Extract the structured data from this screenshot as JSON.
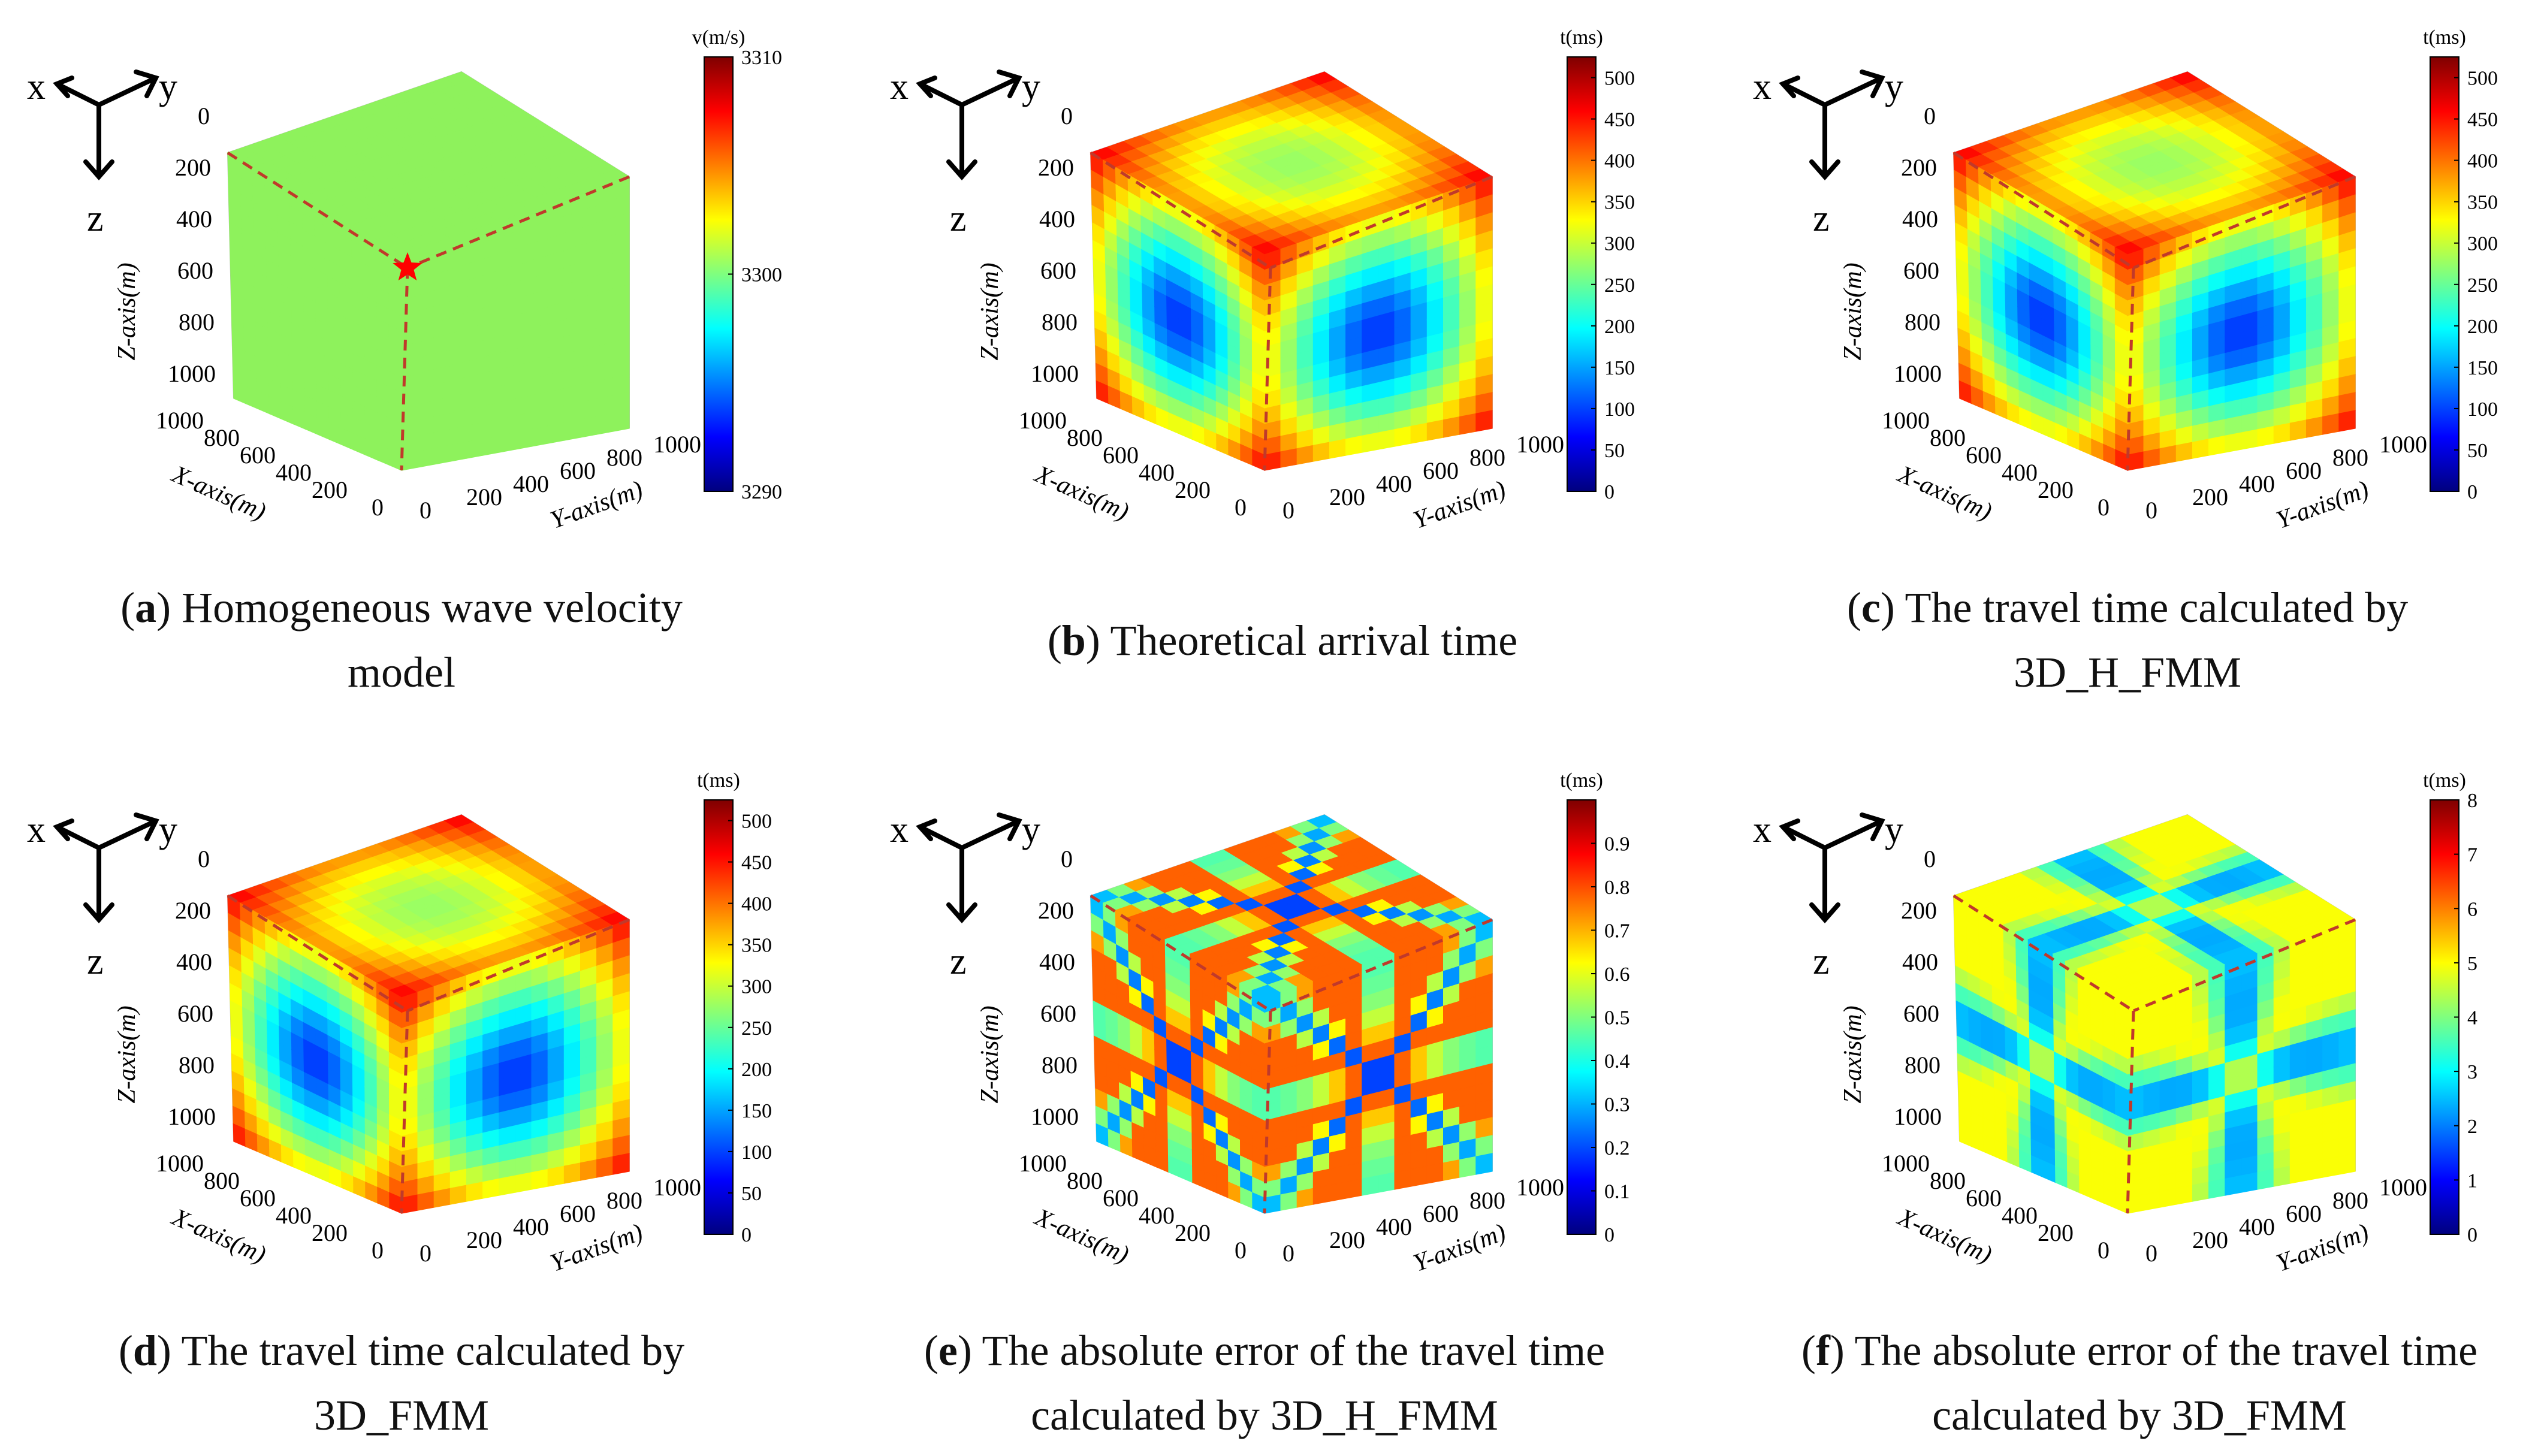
{
  "colormap": [
    "#00007f",
    "#0000ff",
    "#007fff",
    "#00ffff",
    "#7fff7f",
    "#ffff00",
    "#ff7f00",
    "#ff0000",
    "#7f0000"
  ],
  "colors": {
    "source_star": "#ff0000",
    "dashed_lines": "#c0392b",
    "uniform_face": "#8ef25c"
  },
  "orientation": {
    "x_label": "x",
    "y_label": "y",
    "z_label": "z"
  },
  "axes": {
    "z_label": "Z-axis(m)",
    "x_label": "X-axis(m)",
    "y_label": "Y-axis(m)",
    "z_ticks": [
      "0",
      "200",
      "400",
      "600",
      "800",
      "1000"
    ],
    "x_ticks": [
      "1000",
      "800",
      "600",
      "400",
      "200",
      "0"
    ],
    "y_ticks": [
      "0",
      "200",
      "400",
      "600",
      "800",
      "1000"
    ]
  },
  "chart_data": [
    {
      "type": "heatmap",
      "panel": "a",
      "field": "uniform",
      "xlabel": "X-axis(m)",
      "ylabel": "Y-axis(m)",
      "zlabel": "Z-axis(m)",
      "xlim": [
        0,
        1000
      ],
      "ylim": [
        0,
        1000
      ],
      "zlim": [
        0,
        1000
      ],
      "value": 3300,
      "source_point": {
        "x": 500,
        "y": 500,
        "z": 500
      },
      "colorbar": {
        "label": "v(m/s)",
        "min": 3290,
        "max": 3310,
        "ticks": [
          "3290",
          "3300",
          "3310"
        ]
      },
      "caption": {
        "letter": "a",
        "text": "Homogeneous wave velocity",
        "text2": "model"
      }
    },
    {
      "type": "heatmap",
      "panel": "b",
      "field": "travel-time",
      "xlabel": "X-axis(m)",
      "ylabel": "Y-axis(m)",
      "zlabel": "Z-axis(m)",
      "xlim": [
        0,
        1000
      ],
      "ylim": [
        0,
        1000
      ],
      "zlim": [
        0,
        1000
      ],
      "colorbar": {
        "label": "t(ms)",
        "min": 0,
        "max": 525,
        "ticks": [
          "0",
          "50",
          "100",
          "150",
          "200",
          "250",
          "300",
          "350",
          "400",
          "450",
          "500"
        ]
      },
      "caption": {
        "letter": "b",
        "text": "Theoretical arrival time",
        "text2": ""
      }
    },
    {
      "type": "heatmap",
      "panel": "c",
      "field": "travel-time",
      "xlabel": "X-axis(m)",
      "ylabel": "Y-axis(m)",
      "zlabel": "Z-axis(m)",
      "xlim": [
        0,
        1000
      ],
      "ylim": [
        0,
        1000
      ],
      "zlim": [
        0,
        1000
      ],
      "colorbar": {
        "label": "t(ms)",
        "min": 0,
        "max": 525,
        "ticks": [
          "0",
          "50",
          "100",
          "150",
          "200",
          "250",
          "300",
          "350",
          "400",
          "450",
          "500"
        ]
      },
      "caption": {
        "letter": "c",
        "text": "The travel time calculated by",
        "text2": "3D_H_FMM"
      }
    },
    {
      "type": "heatmap",
      "panel": "d",
      "field": "travel-time",
      "xlabel": "X-axis(m)",
      "ylabel": "Y-axis(m)",
      "zlabel": "Z-axis(m)",
      "xlim": [
        0,
        1000
      ],
      "ylim": [
        0,
        1000
      ],
      "zlim": [
        0,
        1000
      ],
      "colorbar": {
        "label": "t(ms)",
        "min": 0,
        "max": 525,
        "ticks": [
          "0",
          "50",
          "100",
          "150",
          "200",
          "250",
          "300",
          "350",
          "400",
          "450",
          "500"
        ]
      },
      "caption": {
        "letter": "d",
        "text": "The travel time calculated by",
        "text2": "3D_FMM"
      }
    },
    {
      "type": "heatmap",
      "panel": "e",
      "field": "error-hfmm",
      "xlabel": "X-axis(m)",
      "ylabel": "Y-axis(m)",
      "zlabel": "Z-axis(m)",
      "xlim": [
        0,
        1000
      ],
      "ylim": [
        0,
        1000
      ],
      "zlim": [
        0,
        1000
      ],
      "colorbar": {
        "label": "t(ms)",
        "min": 0,
        "max": 1.0,
        "ticks": [
          "0",
          "0.1",
          "0.2",
          "0.3",
          "0.4",
          "0.5",
          "0.6",
          "0.7",
          "0.8",
          "0.9"
        ]
      },
      "caption": {
        "letter": "e",
        "text": "The absolute error of the travel time",
        "text2": "calculated by 3D_H_FMM"
      }
    },
    {
      "type": "heatmap",
      "panel": "f",
      "field": "error-fmm",
      "xlabel": "X-axis(m)",
      "ylabel": "Y-axis(m)",
      "zlabel": "Z-axis(m)",
      "xlim": [
        0,
        1000
      ],
      "ylim": [
        0,
        1000
      ],
      "zlim": [
        0,
        1000
      ],
      "colorbar": {
        "label": "t(ms)",
        "min": 0,
        "max": 8,
        "ticks": [
          "0",
          "1",
          "2",
          "3",
          "4",
          "5",
          "6",
          "7",
          "8"
        ]
      },
      "caption": {
        "letter": "f",
        "text": "The absolute error of the travel time",
        "text2": "calculated by 3D_FMM"
      }
    }
  ]
}
